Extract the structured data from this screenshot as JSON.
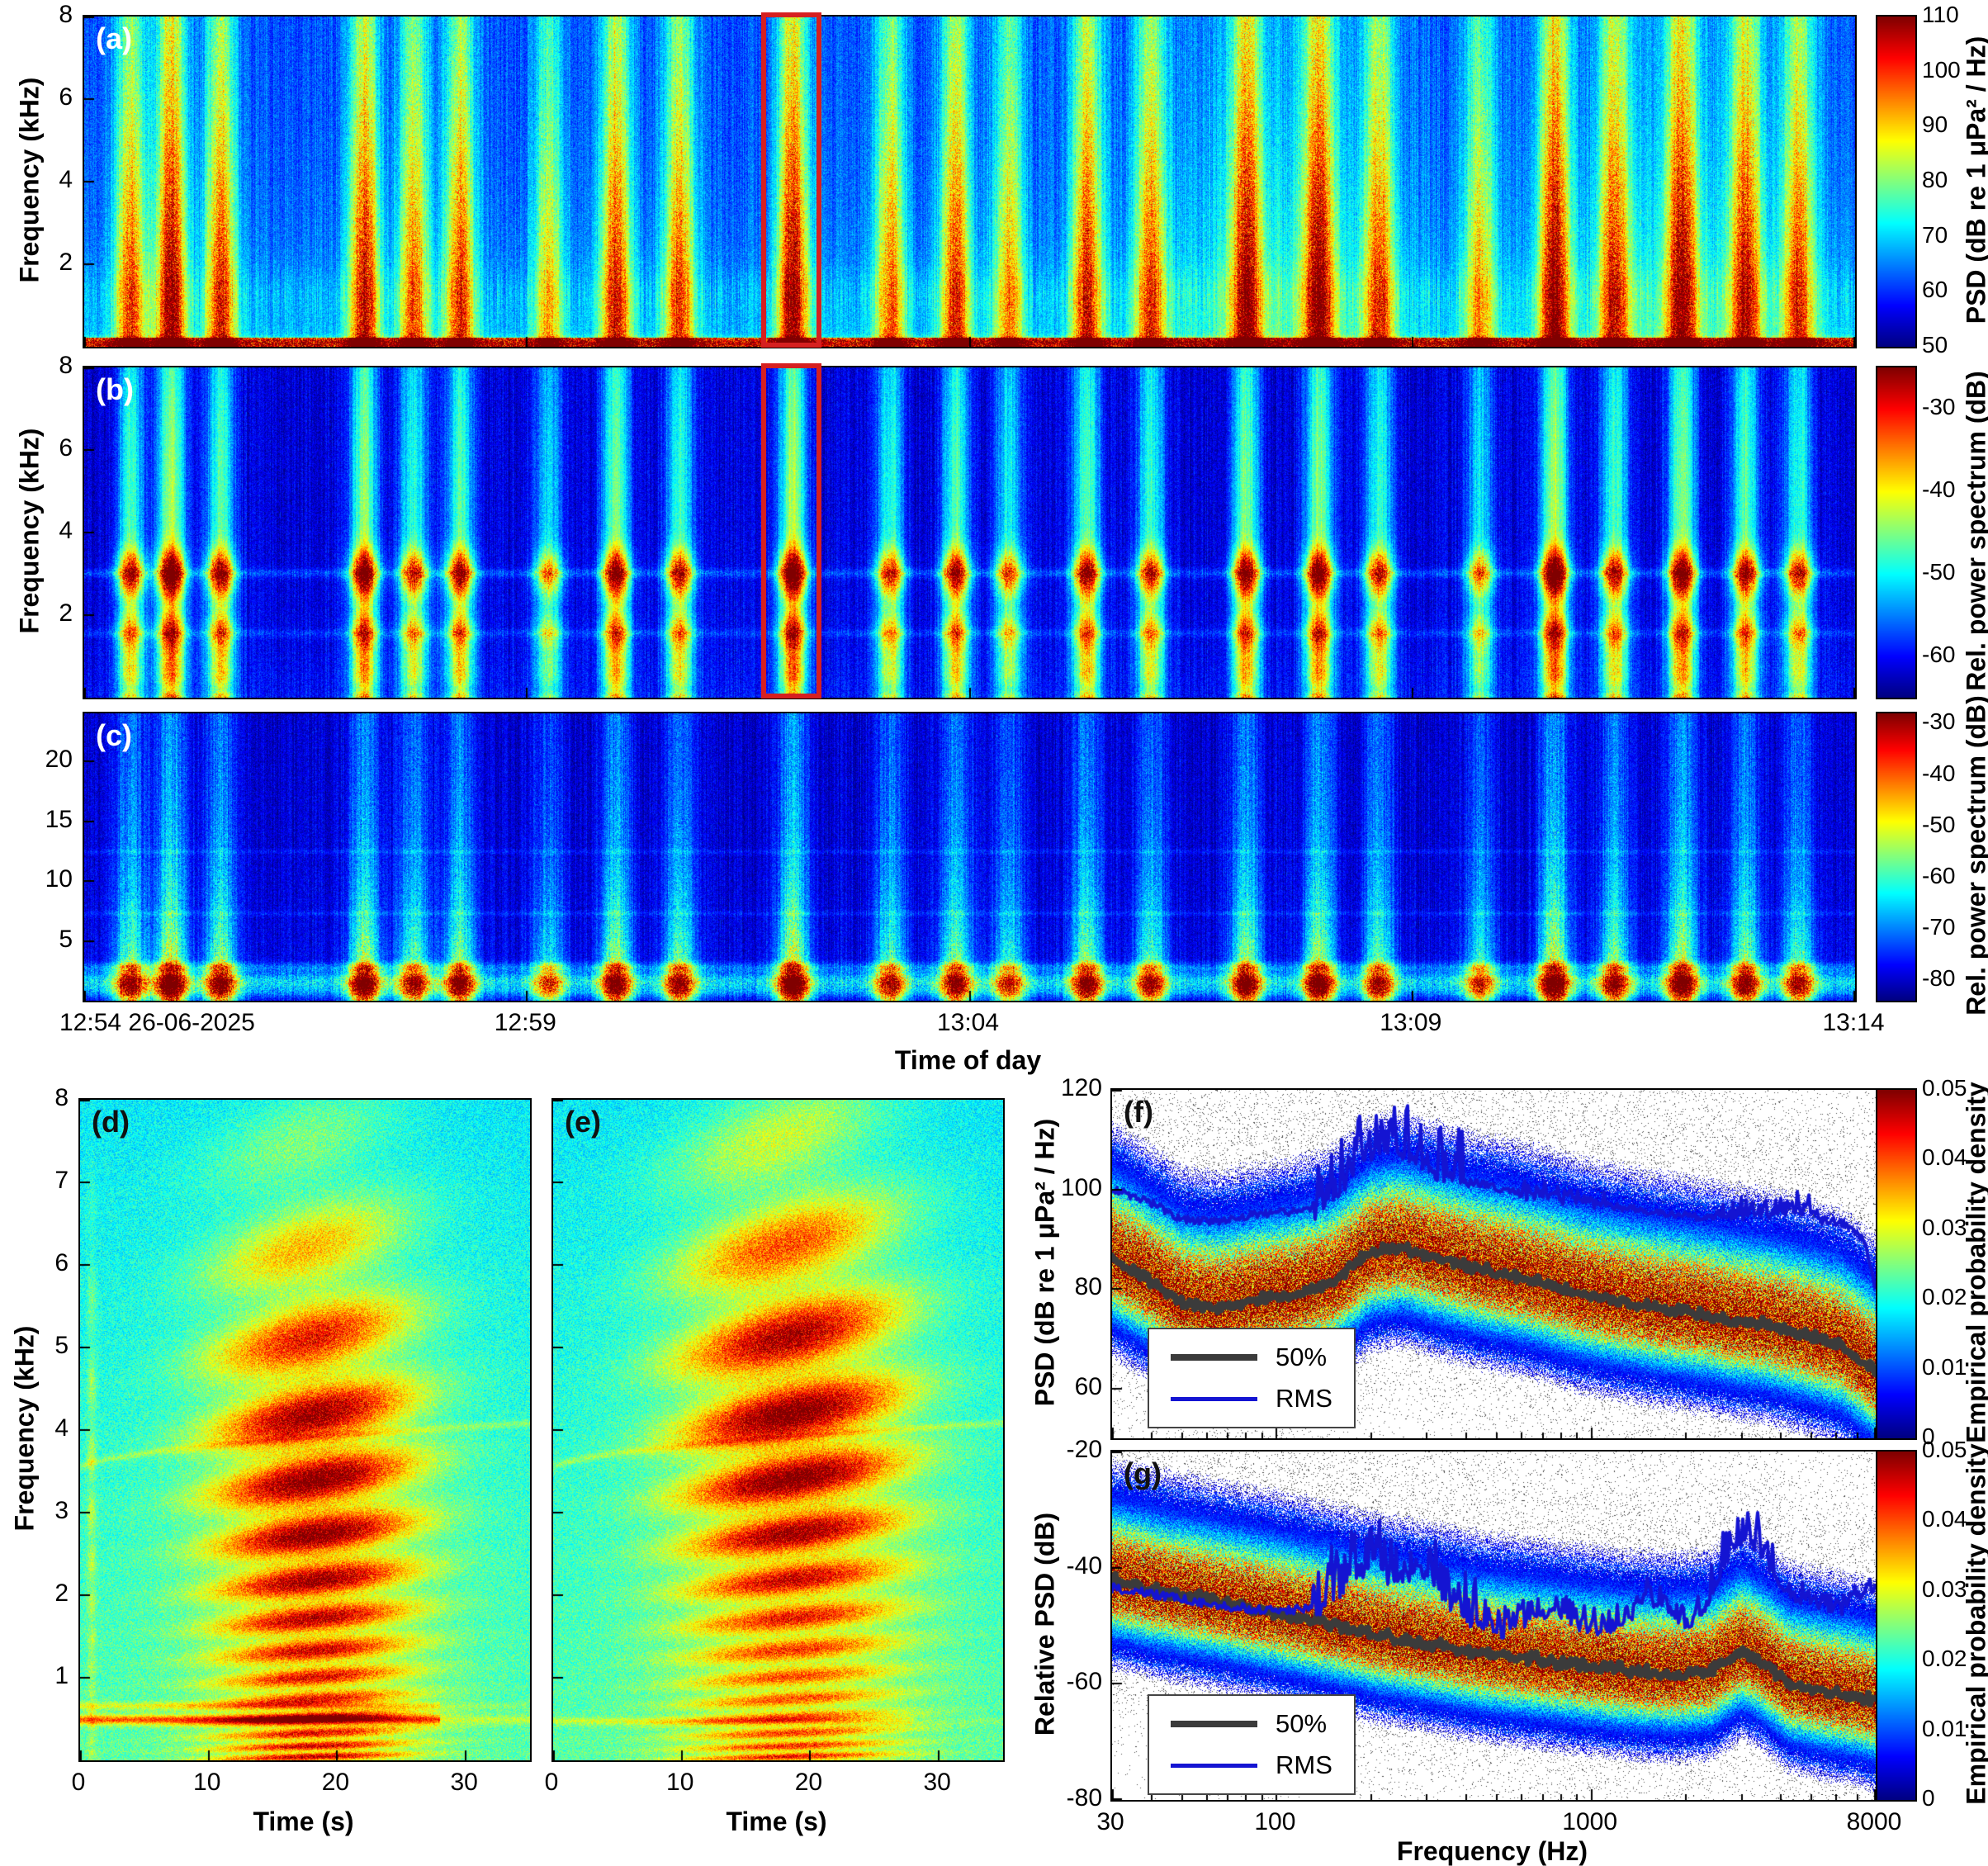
{
  "figure": {
    "background": "#ffffff",
    "highlight_box_color": "#d62020",
    "median_color": "#3b3b3b",
    "rms_color": "#1414d2"
  },
  "events": [
    {
      "t": 0.026,
      "a": 0.55
    },
    {
      "t": 0.049,
      "a": 0.72
    },
    {
      "t": 0.077,
      "a": 0.6
    },
    {
      "t": 0.158,
      "a": 0.66
    },
    {
      "t": 0.186,
      "a": 0.52
    },
    {
      "t": 0.212,
      "a": 0.58
    },
    {
      "t": 0.262,
      "a": 0.4
    },
    {
      "t": 0.3,
      "a": 0.62
    },
    {
      "t": 0.336,
      "a": 0.55
    },
    {
      "t": 0.4,
      "a": 0.72
    },
    {
      "t": 0.455,
      "a": 0.5
    },
    {
      "t": 0.492,
      "a": 0.58
    },
    {
      "t": 0.522,
      "a": 0.45
    },
    {
      "t": 0.566,
      "a": 0.6
    },
    {
      "t": 0.602,
      "a": 0.52
    },
    {
      "t": 0.656,
      "a": 0.62
    },
    {
      "t": 0.697,
      "a": 0.66
    },
    {
      "t": 0.731,
      "a": 0.52
    },
    {
      "t": 0.788,
      "a": 0.42
    },
    {
      "t": 0.83,
      "a": 0.72
    },
    {
      "t": 0.864,
      "a": 0.55
    },
    {
      "t": 0.902,
      "a": 0.66
    },
    {
      "t": 0.938,
      "a": 0.58
    },
    {
      "t": 0.968,
      "a": 0.52
    }
  ],
  "chart_data": [
    {
      "id": "a",
      "label": "(a)",
      "type": "heatmap",
      "subtype": "spectrogram",
      "ylabel": "Frequency (kHz)",
      "ylim": [
        0,
        8
      ],
      "yticks": [
        2,
        4,
        6,
        8
      ],
      "xticks": [
        "12:54 26-06-2025",
        "12:59",
        "13:04",
        "13:09",
        "13:14"
      ],
      "colorbar": {
        "label": "PSD (dB re 1 μPa² / Hz)",
        "lim": [
          50,
          110
        ],
        "ticks": [
          50,
          60,
          70,
          80,
          90,
          100,
          110
        ]
      },
      "highlight_box": {
        "x0": 0.383,
        "x1": 0.417,
        "color": "#d62020"
      },
      "render": {
        "seed": 11,
        "event_width": 0.006
      }
    },
    {
      "id": "b",
      "label": "(b)",
      "type": "heatmap",
      "subtype": "spectrogram",
      "ylabel": "Frequency (kHz)",
      "ylim": [
        0,
        8
      ],
      "yticks": [
        2,
        4,
        6,
        8
      ],
      "colorbar": {
        "label": "Rel. power spectrum (dB)",
        "lim": [
          -65,
          -25
        ],
        "ticks": [
          -60,
          -50,
          -40,
          -30
        ]
      },
      "highlight_box": {
        "x0": 0.383,
        "x1": 0.417,
        "color": "#d62020"
      },
      "render": {
        "seed": 22,
        "event_width": 0.0055
      }
    },
    {
      "id": "c",
      "label": "(c)",
      "type": "heatmap",
      "subtype": "spectrogram",
      "xlabel": "Time of day",
      "ylim": [
        0,
        24
      ],
      "yticks": [
        5,
        10,
        15,
        20
      ],
      "colorbar": {
        "label": "Rel. power spectrum (dB)",
        "lim": [
          -84,
          -28
        ],
        "ticks": [
          -80,
          -70,
          -60,
          -50,
          -40,
          -30
        ]
      },
      "render": {
        "seed": 33,
        "event_width": 0.0062
      }
    },
    {
      "id": "d",
      "label": "(d)",
      "type": "heatmap",
      "subtype": "spectrogram",
      "xlabel": "Time (s)",
      "ylabel": "Frequency (kHz)",
      "xlim": [
        0,
        35
      ],
      "xticks": [
        0,
        10,
        20,
        30
      ],
      "ylim": [
        0,
        8
      ],
      "yticks": [
        1,
        2,
        3,
        4,
        5,
        6,
        7,
        8
      ],
      "render": {
        "seed": 44,
        "core_t": 0.52,
        "core_w": 0.155,
        "amp": 0.66,
        "peak_f": 0.42
      }
    },
    {
      "id": "e",
      "label": "(e)",
      "type": "heatmap",
      "subtype": "spectrogram",
      "xlabel": "Time (s)",
      "xlim": [
        0,
        35
      ],
      "xticks": [
        0,
        10,
        20,
        30
      ],
      "ylim": [
        0,
        8
      ],
      "yticks": [],
      "render": {
        "seed": 55,
        "core_t": 0.53,
        "core_w": 0.17,
        "amp": 0.68,
        "peak_f": 0.5
      }
    },
    {
      "id": "f",
      "label": "(f)",
      "type": "heatmap",
      "subtype": "probability-density",
      "ylabel": "PSD (dB re 1 μPa² / Hz)",
      "ylim": [
        50,
        120
      ],
      "yticks": [
        60,
        80,
        100,
        120
      ],
      "xlim": [
        30,
        8000
      ],
      "xscale": "log",
      "xticks": [],
      "colorbar": {
        "label": "Empirical probability density",
        "lim": [
          0,
          0.05
        ],
        "ticks": [
          0,
          0.01,
          0.02,
          0.03,
          0.04,
          0.05
        ]
      },
      "legend": [
        {
          "label": "50%",
          "color": "#3b3b3b",
          "line_width": 8
        },
        {
          "label": "RMS",
          "color": "#1414d2",
          "line_width": 5
        }
      ],
      "series": [
        {
          "name": "50%",
          "points": [
            [
              30,
              86
            ],
            [
              38,
              82
            ],
            [
              50,
              77
            ],
            [
              65,
              76
            ],
            [
              85,
              77.5
            ],
            [
              110,
              78.5
            ],
            [
              150,
              81
            ],
            [
              200,
              87
            ],
            [
              250,
              88
            ],
            [
              320,
              86
            ],
            [
              420,
              84
            ],
            [
              550,
              82.5
            ],
            [
              700,
              81
            ],
            [
              900,
              79
            ],
            [
              1200,
              77.5
            ],
            [
              1600,
              76
            ],
            [
              2100,
              75
            ],
            [
              2800,
              73.5
            ],
            [
              3600,
              72.5
            ],
            [
              4800,
              70.5
            ],
            [
              6200,
              68.5
            ],
            [
              8000,
              63
            ]
          ],
          "spike_zones": [
            [
              30,
              8000,
              0.8
            ]
          ]
        },
        {
          "name": "RMS",
          "points": [
            [
              30,
              100
            ],
            [
              38,
              98
            ],
            [
              50,
              94
            ],
            [
              65,
              93.5
            ],
            [
              85,
              95
            ],
            [
              110,
              95.5
            ],
            [
              140,
              96.5
            ],
            [
              170,
              103
            ],
            [
              200,
              108
            ],
            [
              240,
              109
            ],
            [
              300,
              105
            ],
            [
              400,
              102
            ],
            [
              550,
              99.5
            ],
            [
              700,
              98.5
            ],
            [
              900,
              98
            ],
            [
              1200,
              96.5
            ],
            [
              1600,
              95.5
            ],
            [
              2100,
              94.5
            ],
            [
              2800,
              94.5
            ],
            [
              3600,
              95.5
            ],
            [
              4500,
              96
            ],
            [
              5500,
              94
            ],
            [
              6500,
              93
            ],
            [
              7300,
              90
            ],
            [
              8000,
              80
            ]
          ],
          "spike_zones": [
            [
              130,
              430,
              7
            ],
            [
              600,
              1100,
              2
            ],
            [
              2500,
              5500,
              2.5
            ]
          ]
        }
      ],
      "render": {
        "seed": 66,
        "sigma": 6.5
      }
    },
    {
      "id": "g",
      "label": "(g)",
      "type": "heatmap",
      "subtype": "probability-density",
      "xlabel": "Frequency (Hz)",
      "ylabel": "Relative PSD (dB)",
      "ylim": [
        -80,
        -20
      ],
      "yticks": [
        -80,
        -60,
        -40,
        -20
      ],
      "xlim": [
        30,
        8000
      ],
      "xscale": "log",
      "xticks": [
        30,
        100,
        1000,
        8000
      ],
      "colorbar": {
        "label": "Empirical probability density",
        "lim": [
          0,
          0.05
        ],
        "ticks": [
          0,
          0.01,
          0.02,
          0.03,
          0.04,
          0.05
        ]
      },
      "legend": [
        {
          "label": "50%",
          "color": "#3b3b3b",
          "line_width": 8
        },
        {
          "label": "RMS",
          "color": "#1414d2",
          "line_width": 5
        }
      ],
      "series": [
        {
          "name": "50%",
          "points": [
            [
              30,
              -42.5
            ],
            [
              45,
              -44.5
            ],
            [
              65,
              -46
            ],
            [
              100,
              -48
            ],
            [
              150,
              -50
            ],
            [
              220,
              -52
            ],
            [
              320,
              -53.5
            ],
            [
              450,
              -55
            ],
            [
              650,
              -56
            ],
            [
              900,
              -57
            ],
            [
              1300,
              -58
            ],
            [
              1800,
              -58.5
            ],
            [
              2400,
              -58
            ],
            [
              3000,
              -54.5
            ],
            [
              3400,
              -56
            ],
            [
              4200,
              -60
            ],
            [
              5500,
              -61.5
            ],
            [
              7000,
              -62.5
            ],
            [
              8000,
              -63.5
            ]
          ],
          "spike_zones": [
            [
              30,
              8000,
              0.7
            ]
          ]
        },
        {
          "name": "RMS",
          "points": [
            [
              30,
              -43.5
            ],
            [
              45,
              -45
            ],
            [
              65,
              -46.5
            ],
            [
              100,
              -47.5
            ],
            [
              130,
              -47
            ],
            [
              160,
              -43
            ],
            [
              200,
              -39
            ],
            [
              240,
              -42
            ],
            [
              280,
              -39.5
            ],
            [
              340,
              -44
            ],
            [
              420,
              -49
            ],
            [
              520,
              -51
            ],
            [
              620,
              -49
            ],
            [
              750,
              -47.5
            ],
            [
              900,
              -49.5
            ],
            [
              1100,
              -51
            ],
            [
              1300,
              -49
            ],
            [
              1500,
              -44.5
            ],
            [
              1700,
              -47
            ],
            [
              2000,
              -50
            ],
            [
              2300,
              -47
            ],
            [
              2700,
              -38
            ],
            [
              3100,
              -34
            ],
            [
              3500,
              -37.5
            ],
            [
              4000,
              -43
            ],
            [
              4600,
              -45.5
            ],
            [
              5300,
              -46.5
            ],
            [
              6200,
              -47
            ],
            [
              7000,
              -45.5
            ],
            [
              8000,
              -43.5
            ]
          ],
          "spike_zones": [
            [
              130,
              430,
              6
            ],
            [
              450,
              1400,
              3
            ],
            [
              1500,
              2200,
              2.5
            ],
            [
              2400,
              3800,
              4
            ],
            [
              4200,
              8000,
              2
            ]
          ]
        }
      ],
      "render": {
        "seed": 77,
        "sigma": 5
      }
    }
  ]
}
